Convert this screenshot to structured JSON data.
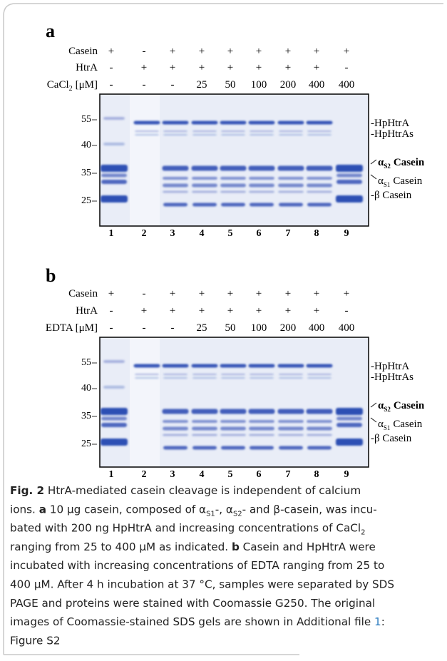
{
  "figure": {
    "panels": [
      {
        "label": "a",
        "rows": [
          {
            "label": {
              "text": "Casein"
            },
            "cells": [
              "+",
              "-",
              "+",
              "+",
              "+",
              "+",
              "+",
              "+",
              "+"
            ]
          },
          {
            "label": {
              "text": "HtrA"
            },
            "cells": [
              "-",
              "+",
              "+",
              "+",
              "+",
              "+",
              "+",
              "+",
              "-"
            ]
          },
          {
            "label": {
              "text": "CaCl",
              "sub": "2",
              "suffix": "[μM]"
            },
            "cells": [
              "-",
              "-",
              "-",
              "25",
              "50",
              "100",
              "200",
              "400",
              "400"
            ]
          }
        ],
        "markers": [
          55,
          40,
          35,
          25
        ],
        "band_labels": [
          {
            "text": "-HpHtrA"
          },
          {
            "text": "-HpHtrAs"
          },
          {
            "text": "α",
            "sub": "S2",
            "suffix": "Casein"
          },
          {
            "text": "α",
            "sub": "S1",
            "suffix": "Casein"
          },
          {
            "text": "-β Casein"
          }
        ],
        "lanes": [
          "1",
          "2",
          "3",
          "4",
          "5",
          "6",
          "7",
          "8",
          "9"
        ]
      },
      {
        "label": "b",
        "rows": [
          {
            "label": {
              "text": "Casein"
            },
            "cells": [
              "+",
              "-",
              "+",
              "+",
              "+",
              "+",
              "+",
              "+",
              "+"
            ]
          },
          {
            "label": {
              "text": "HtrA"
            },
            "cells": [
              "-",
              "+",
              "+",
              "+",
              "+",
              "+",
              "+",
              "+",
              "-"
            ]
          },
          {
            "label": {
              "text": "EDTA [μM]"
            },
            "cells": [
              "-",
              "-",
              "-",
              "25",
              "50",
              "100",
              "200",
              "400",
              "400"
            ]
          }
        ],
        "markers": [
          55,
          40,
          35,
          25
        ],
        "band_labels": [
          {
            "text": "-HpHtrA"
          },
          {
            "text": "-HpHtrAs"
          },
          {
            "text": "α",
            "sub": "S2",
            "suffix": "Casein"
          },
          {
            "text": "α",
            "sub": "S1",
            "suffix": "Casein"
          },
          {
            "text": "-β Casein"
          }
        ],
        "lanes": [
          "1",
          "2",
          "3",
          "4",
          "5",
          "6",
          "7",
          "8",
          "9"
        ]
      }
    ],
    "caption": [
      [
        {
          "text": "Fig. 2",
          "style": "bold"
        },
        {
          "text": "  HtrA-mediated casein cleavage is independent of calcium"
        }
      ],
      [
        {
          "text": "ions. "
        },
        {
          "text": "a",
          "style": "bold"
        },
        {
          "text": " 10 μg casein, composed of α"
        },
        {
          "text": "S1",
          "style": "sub"
        },
        {
          "text": "-, α"
        },
        {
          "text": "S2",
          "style": "sub"
        },
        {
          "text": "- and β-casein, was incu-"
        }
      ],
      [
        {
          "text": "bated with 200 ng HpHtrA and increasing concentrations of CaCl"
        },
        {
          "text": "2",
          "style": "sub"
        }
      ],
      [
        {
          "text": "ranging from 25 to 400 μM as indicated. "
        },
        {
          "text": "b",
          "style": "bold"
        },
        {
          "text": " Casein and HpHtrA were"
        }
      ],
      [
        {
          "text": "incubated with increasing concentrations of EDTA ranging from 25 to"
        }
      ],
      [
        {
          "text": "400 μM. After 4 h incubation at 37 °C, samples were separated by SDS"
        }
      ],
      [
        {
          "text": "PAGE and proteins were stained with Coomassie G250. The original"
        }
      ],
      [
        {
          "text": "images of Coomassie-stained SDS gels are shown in Additional file "
        },
        {
          "text": "1",
          "style": "link"
        },
        {
          "text": ":"
        }
      ],
      [
        {
          "text": "Figure S2"
        }
      ]
    ]
  }
}
